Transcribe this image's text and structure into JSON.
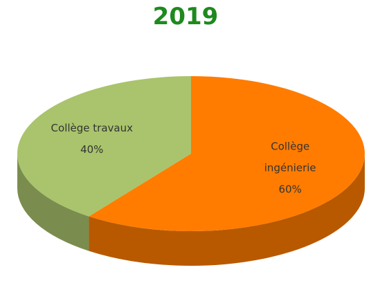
{
  "chart_data": {
    "type": "pie",
    "title": "2019",
    "categories": [
      "Collège ingénierie",
      "Collège travaux"
    ],
    "values": [
      60,
      40
    ],
    "value_labels": [
      "60%",
      "40%"
    ],
    "colors": [
      "#ff7c00",
      "#a9c46c"
    ]
  }
}
